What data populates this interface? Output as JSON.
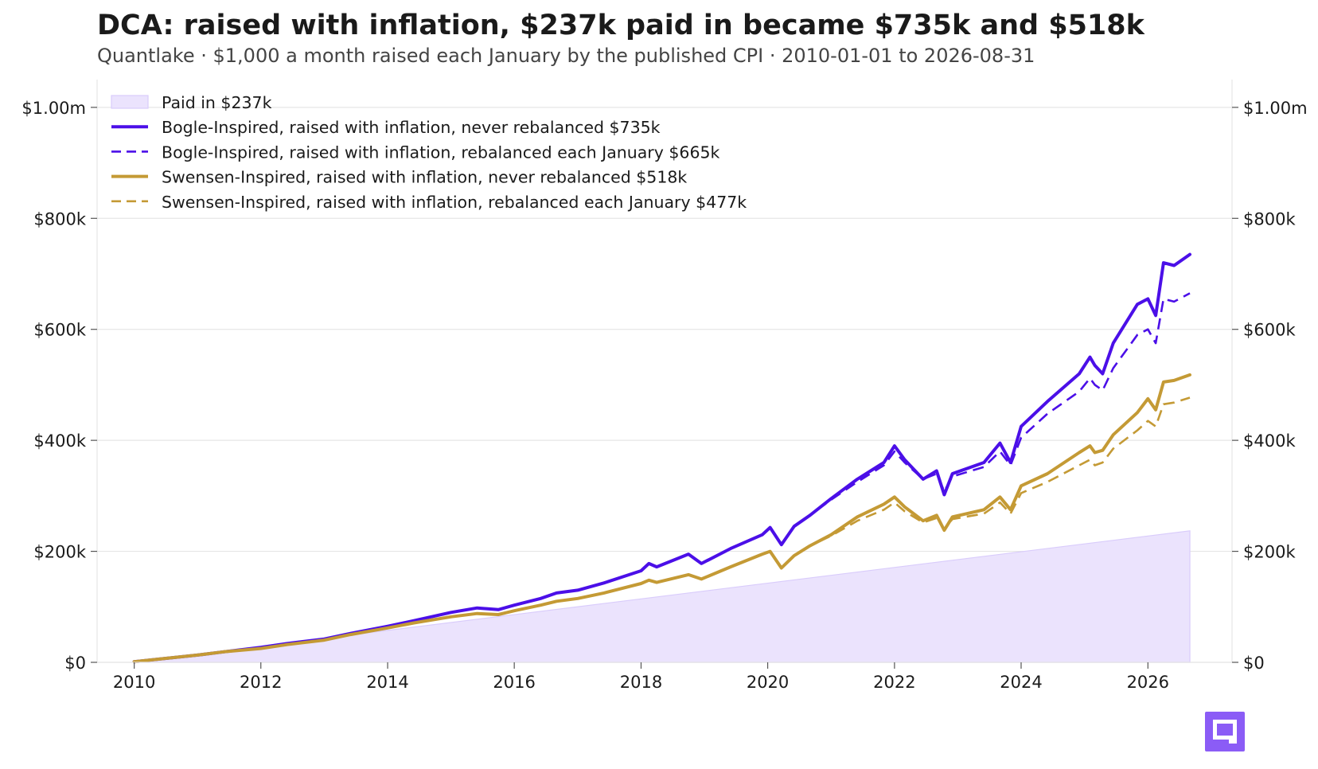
{
  "header": {
    "title": "DCA: raised with inflation, $237k paid in became $735k and $518k",
    "subtitle": "Quantlake  ·  $1,000 a month raised each January by the published CPI  ·  2010-01-01 to 2026-08-31"
  },
  "colors": {
    "bogle": "#4b0fe8",
    "swensen": "#c49a35",
    "paid_fill": "#ebe3fd",
    "paid_edge": "#d9ccfb",
    "grid": "#e6e6e6",
    "logo": "#8b5cf6"
  },
  "logo": {
    "icon": "quantlake-logo-icon"
  },
  "chart_data": {
    "type": "line",
    "x_axis": {
      "type": "date",
      "range": [
        "2009-06-01",
        "2027-05-01"
      ],
      "ticks": [
        "2010",
        "2012",
        "2014",
        "2016",
        "2018",
        "2020",
        "2022",
        "2024",
        "2026"
      ]
    },
    "y_axis": {
      "range": [
        0,
        1050000
      ],
      "ticks": [
        0,
        200000,
        400000,
        600000,
        800000,
        1000000
      ],
      "tick_labels": [
        "$0",
        "$200k",
        "$400k",
        "$600k",
        "$800k",
        "$1.00m"
      ],
      "position": "both"
    },
    "grid": "horizontal",
    "legend": {
      "position": "top-left",
      "entries": [
        {
          "label": "Paid in  $237k",
          "style": "area"
        },
        {
          "label": "Bogle-Inspired, raised with inflation, never rebalanced  $735k",
          "style": "solid"
        },
        {
          "label": "Bogle-Inspired, raised with inflation, rebalanced each January  $665k",
          "style": "dashed"
        },
        {
          "label": "Swensen-Inspired, raised with inflation, never rebalanced  $518k",
          "style": "solid"
        },
        {
          "label": "Swensen-Inspired, raised with inflation, rebalanced each January  $477k",
          "style": "dashed"
        }
      ]
    },
    "series": [
      {
        "key": "paid",
        "type": "area",
        "points": [
          [
            "2010-01-01",
            1000
          ],
          [
            "2026-08-31",
            237000
          ]
        ]
      },
      {
        "key": "bogle_never",
        "type": "line",
        "dash": false,
        "points": [
          [
            "2010-01-01",
            1000
          ],
          [
            "2010-06-01",
            6000
          ],
          [
            "2011-01-01",
            13000
          ],
          [
            "2011-06-01",
            19000
          ],
          [
            "2012-01-01",
            27000
          ],
          [
            "2012-06-01",
            34000
          ],
          [
            "2013-01-01",
            42000
          ],
          [
            "2013-06-01",
            52000
          ],
          [
            "2014-01-01",
            65000
          ],
          [
            "2014-06-01",
            75000
          ],
          [
            "2015-01-01",
            90000
          ],
          [
            "2015-06-01",
            98000
          ],
          [
            "2015-10-01",
            95000
          ],
          [
            "2016-01-01",
            103000
          ],
          [
            "2016-06-01",
            115000
          ],
          [
            "2016-09-01",
            125000
          ],
          [
            "2017-01-01",
            130000
          ],
          [
            "2017-06-01",
            143000
          ],
          [
            "2018-01-01",
            165000
          ],
          [
            "2018-02-15",
            178000
          ],
          [
            "2018-04-01",
            172000
          ],
          [
            "2018-10-01",
            195000
          ],
          [
            "2018-12-15",
            178000
          ],
          [
            "2019-06-01",
            205000
          ],
          [
            "2019-12-01",
            230000
          ],
          [
            "2020-01-15",
            243000
          ],
          [
            "2020-03-20",
            212000
          ],
          [
            "2020-06-01",
            245000
          ],
          [
            "2020-09-01",
            265000
          ],
          [
            "2021-01-01",
            295000
          ],
          [
            "2021-06-01",
            330000
          ],
          [
            "2021-11-01",
            360000
          ],
          [
            "2022-01-01",
            390000
          ],
          [
            "2022-03-01",
            365000
          ],
          [
            "2022-06-15",
            330000
          ],
          [
            "2022-09-01",
            345000
          ],
          [
            "2022-10-15",
            302000
          ],
          [
            "2022-12-01",
            340000
          ],
          [
            "2023-06-01",
            360000
          ],
          [
            "2023-09-01",
            395000
          ],
          [
            "2023-11-01",
            360000
          ],
          [
            "2024-01-01",
            425000
          ],
          [
            "2024-06-01",
            470000
          ],
          [
            "2024-12-01",
            520000
          ],
          [
            "2025-02-01",
            550000
          ],
          [
            "2025-03-01",
            535000
          ],
          [
            "2025-04-15",
            520000
          ],
          [
            "2025-06-15",
            575000
          ],
          [
            "2025-11-01",
            645000
          ],
          [
            "2026-01-01",
            655000
          ],
          [
            "2026-02-15",
            625000
          ],
          [
            "2026-04-01",
            720000
          ],
          [
            "2026-06-01",
            715000
          ],
          [
            "2026-08-31",
            735000
          ]
        ]
      },
      {
        "key": "bogle_rebal",
        "type": "line",
        "dash": true,
        "points": [
          [
            "2010-01-01",
            1000
          ],
          [
            "2010-06-01",
            6000
          ],
          [
            "2011-01-01",
            13000
          ],
          [
            "2011-06-01",
            19000
          ],
          [
            "2012-01-01",
            27000
          ],
          [
            "2012-06-01",
            34000
          ],
          [
            "2013-01-01",
            42000
          ],
          [
            "2013-06-01",
            52000
          ],
          [
            "2014-01-01",
            65000
          ],
          [
            "2014-06-01",
            75000
          ],
          [
            "2015-01-01",
            90000
          ],
          [
            "2015-06-01",
            98000
          ],
          [
            "2015-10-01",
            95000
          ],
          [
            "2016-01-01",
            103000
          ],
          [
            "2016-06-01",
            115000
          ],
          [
            "2016-09-01",
            125000
          ],
          [
            "2017-01-01",
            130000
          ],
          [
            "2017-06-01",
            143000
          ],
          [
            "2018-01-01",
            165000
          ],
          [
            "2018-02-15",
            178000
          ],
          [
            "2018-04-01",
            172000
          ],
          [
            "2018-10-01",
            195000
          ],
          [
            "2018-12-15",
            178000
          ],
          [
            "2019-06-01",
            205000
          ],
          [
            "2019-12-01",
            230000
          ],
          [
            "2020-01-15",
            243000
          ],
          [
            "2020-03-20",
            212000
          ],
          [
            "2020-06-01",
            245000
          ],
          [
            "2020-09-01",
            265000
          ],
          [
            "2021-01-01",
            293000
          ],
          [
            "2021-06-01",
            325000
          ],
          [
            "2021-11-01",
            355000
          ],
          [
            "2022-01-01",
            380000
          ],
          [
            "2022-03-01",
            360000
          ],
          [
            "2022-06-15",
            330000
          ],
          [
            "2022-09-01",
            340000
          ],
          [
            "2022-10-15",
            308000
          ],
          [
            "2022-12-01",
            335000
          ],
          [
            "2023-06-01",
            352000
          ],
          [
            "2023-09-01",
            380000
          ],
          [
            "2023-11-01",
            355000
          ],
          [
            "2024-01-01",
            405000
          ],
          [
            "2024-06-01",
            448000
          ],
          [
            "2024-12-01",
            488000
          ],
          [
            "2025-02-01",
            512000
          ],
          [
            "2025-03-01",
            500000
          ],
          [
            "2025-04-15",
            490000
          ],
          [
            "2025-06-15",
            530000
          ],
          [
            "2025-11-01",
            590000
          ],
          [
            "2026-01-01",
            600000
          ],
          [
            "2026-02-15",
            575000
          ],
          [
            "2026-04-01",
            655000
          ],
          [
            "2026-06-01",
            650000
          ],
          [
            "2026-08-31",
            665000
          ]
        ]
      },
      {
        "key": "swensen_never",
        "type": "line",
        "dash": false,
        "points": [
          [
            "2010-01-01",
            1000
          ],
          [
            "2010-06-01",
            6000
          ],
          [
            "2011-01-01",
            13000
          ],
          [
            "2011-06-01",
            19000
          ],
          [
            "2012-01-01",
            25000
          ],
          [
            "2012-06-01",
            32000
          ],
          [
            "2013-01-01",
            40000
          ],
          [
            "2013-06-01",
            50000
          ],
          [
            "2014-01-01",
            62000
          ],
          [
            "2014-06-01",
            71000
          ],
          [
            "2015-01-01",
            82000
          ],
          [
            "2015-06-01",
            88000
          ],
          [
            "2015-10-01",
            86000
          ],
          [
            "2016-01-01",
            93000
          ],
          [
            "2016-06-01",
            103000
          ],
          [
            "2016-09-01",
            110000
          ],
          [
            "2017-01-01",
            115000
          ],
          [
            "2017-06-01",
            125000
          ],
          [
            "2018-01-01",
            142000
          ],
          [
            "2018-02-15",
            148000
          ],
          [
            "2018-04-01",
            144000
          ],
          [
            "2018-10-01",
            158000
          ],
          [
            "2018-12-15",
            150000
          ],
          [
            "2019-06-01",
            172000
          ],
          [
            "2019-12-01",
            195000
          ],
          [
            "2020-01-15",
            200000
          ],
          [
            "2020-03-20",
            170000
          ],
          [
            "2020-06-01",
            192000
          ],
          [
            "2020-09-01",
            210000
          ],
          [
            "2021-01-01",
            230000
          ],
          [
            "2021-06-01",
            262000
          ],
          [
            "2021-11-01",
            285000
          ],
          [
            "2022-01-01",
            298000
          ],
          [
            "2022-03-01",
            280000
          ],
          [
            "2022-06-15",
            255000
          ],
          [
            "2022-09-01",
            265000
          ],
          [
            "2022-10-15",
            238000
          ],
          [
            "2022-12-01",
            262000
          ],
          [
            "2023-06-01",
            275000
          ],
          [
            "2023-09-01",
            298000
          ],
          [
            "2023-11-01",
            275000
          ],
          [
            "2024-01-01",
            318000
          ],
          [
            "2024-06-01",
            340000
          ],
          [
            "2024-12-01",
            378000
          ],
          [
            "2025-02-01",
            390000
          ],
          [
            "2025-03-01",
            378000
          ],
          [
            "2025-04-15",
            382000
          ],
          [
            "2025-06-15",
            410000
          ],
          [
            "2025-11-01",
            450000
          ],
          [
            "2026-01-01",
            475000
          ],
          [
            "2026-02-15",
            455000
          ],
          [
            "2026-04-01",
            505000
          ],
          [
            "2026-06-01",
            508000
          ],
          [
            "2026-08-31",
            518000
          ]
        ]
      },
      {
        "key": "swensen_rebal",
        "type": "line",
        "dash": true,
        "points": [
          [
            "2010-01-01",
            1000
          ],
          [
            "2010-06-01",
            6000
          ],
          [
            "2011-01-01",
            13000
          ],
          [
            "2011-06-01",
            19000
          ],
          [
            "2012-01-01",
            25000
          ],
          [
            "2012-06-01",
            32000
          ],
          [
            "2013-01-01",
            40000
          ],
          [
            "2013-06-01",
            50000
          ],
          [
            "2014-01-01",
            62000
          ],
          [
            "2014-06-01",
            71000
          ],
          [
            "2015-01-01",
            82000
          ],
          [
            "2015-06-01",
            88000
          ],
          [
            "2015-10-01",
            86000
          ],
          [
            "2016-01-01",
            93000
          ],
          [
            "2016-06-01",
            103000
          ],
          [
            "2016-09-01",
            110000
          ],
          [
            "2017-01-01",
            115000
          ],
          [
            "2017-06-01",
            125000
          ],
          [
            "2018-01-01",
            142000
          ],
          [
            "2018-02-15",
            148000
          ],
          [
            "2018-04-01",
            144000
          ],
          [
            "2018-10-01",
            158000
          ],
          [
            "2018-12-15",
            150000
          ],
          [
            "2019-06-01",
            172000
          ],
          [
            "2019-12-01",
            195000
          ],
          [
            "2020-01-15",
            200000
          ],
          [
            "2020-03-20",
            170000
          ],
          [
            "2020-06-01",
            192000
          ],
          [
            "2020-09-01",
            210000
          ],
          [
            "2021-01-01",
            228000
          ],
          [
            "2021-06-01",
            255000
          ],
          [
            "2021-11-01",
            275000
          ],
          [
            "2022-01-01",
            288000
          ],
          [
            "2022-03-01",
            272000
          ],
          [
            "2022-06-15",
            252000
          ],
          [
            "2022-09-01",
            260000
          ],
          [
            "2022-10-15",
            240000
          ],
          [
            "2022-12-01",
            258000
          ],
          [
            "2023-06-01",
            268000
          ],
          [
            "2023-09-01",
            288000
          ],
          [
            "2023-11-01",
            268000
          ],
          [
            "2024-01-01",
            305000
          ],
          [
            "2024-06-01",
            325000
          ],
          [
            "2024-12-01",
            355000
          ],
          [
            "2025-02-01",
            365000
          ],
          [
            "2025-03-01",
            355000
          ],
          [
            "2025-04-15",
            360000
          ],
          [
            "2025-06-15",
            385000
          ],
          [
            "2025-11-01",
            418000
          ],
          [
            "2026-01-01",
            435000
          ],
          [
            "2026-02-15",
            425000
          ],
          [
            "2026-04-01",
            465000
          ],
          [
            "2026-06-01",
            468000
          ],
          [
            "2026-08-31",
            477000
          ]
        ]
      }
    ]
  }
}
